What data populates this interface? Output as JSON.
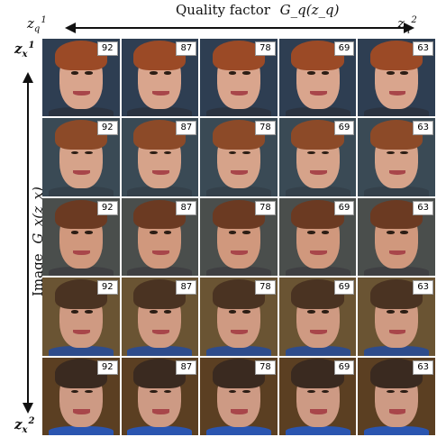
{
  "header": {
    "quality_title": "Quality factor",
    "quality_function": "G_q(z_q)",
    "image_title": "Image",
    "image_function": "G_x(z_x)",
    "zq_left": "z",
    "zq_left_sub": "q",
    "zq_left_sup": "1",
    "zq_right": "z",
    "zq_right_sub": "q",
    "zq_right_sup": "2",
    "zx_top": "z",
    "zx_top_sub": "x",
    "zx_top_sup": "1",
    "zx_bottom": "z",
    "zx_bottom_sub": "x",
    "zx_bottom_sup": "2"
  },
  "quality_scores": [
    "92",
    "87",
    "78",
    "69",
    "63"
  ],
  "rows": [
    {
      "bg": "#2e3e52",
      "hair": "#9b4a26",
      "skin": "#d9a58d",
      "shirt": "#2b3340"
    },
    {
      "bg": "#3a4a55",
      "hair": "#8c4a28",
      "skin": "#d6a38a",
      "shirt": "#34404a"
    },
    {
      "bg": "#4a4e4c",
      "hair": "#6b3a22",
      "skin": "#d0987d",
      "shirt": "#3f3f42"
    },
    {
      "bg": "#6a5433",
      "hair": "#4a3322",
      "skin": "#cf9a82",
      "shirt": "#2e4c8c"
    },
    {
      "bg": "#5b3f22",
      "hair": "#3a2a20",
      "skin": "#cd9a84",
      "shirt": "#2a55b0"
    }
  ]
}
